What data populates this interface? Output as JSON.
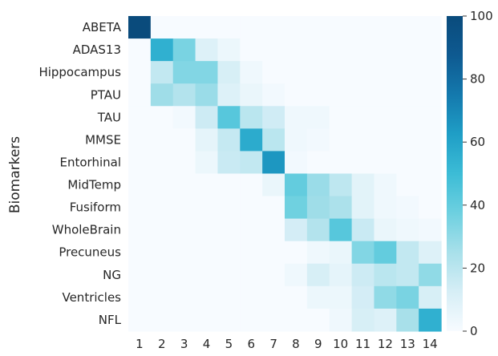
{
  "chart_data": {
    "type": "heatmap",
    "ylabel": "Biomarkers",
    "xlabel": "",
    "title": "",
    "rows": [
      "ABETA",
      "ADAS13",
      "Hippocampus",
      "PTAU",
      "TAU",
      "MMSE",
      "Entorhinal",
      "MidTemp",
      "Fusiform",
      "WholeBrain",
      "Precuneus",
      "NG",
      "Ventricles",
      "NFL"
    ],
    "columns": [
      "1",
      "2",
      "3",
      "4",
      "5",
      "6",
      "7",
      "8",
      "9",
      "10",
      "11",
      "12",
      "13",
      "14"
    ],
    "values": [
      [
        100,
        0,
        0,
        0,
        0,
        0,
        0,
        0,
        0,
        0,
        0,
        0,
        0,
        0
      ],
      [
        0,
        55,
        35,
        10,
        4,
        0,
        0,
        0,
        0,
        0,
        0,
        0,
        0,
        0
      ],
      [
        0,
        18,
        33,
        33,
        12,
        3,
        0,
        0,
        0,
        0,
        0,
        0,
        0,
        0
      ],
      [
        0,
        27,
        22,
        28,
        10,
        5,
        2,
        0,
        0,
        0,
        0,
        0,
        0,
        0
      ],
      [
        0,
        0,
        2,
        15,
        43,
        20,
        14,
        3,
        3,
        0,
        0,
        0,
        0,
        0
      ],
      [
        0,
        0,
        0,
        7,
        17,
        57,
        20,
        3,
        2,
        0,
        0,
        0,
        0,
        0
      ],
      [
        0,
        0,
        0,
        4,
        16,
        18,
        65,
        2,
        0,
        0,
        0,
        0,
        0,
        0
      ],
      [
        0,
        0,
        0,
        0,
        0,
        0,
        5,
        40,
        28,
        19,
        8,
        3,
        0,
        0
      ],
      [
        0,
        0,
        0,
        0,
        0,
        0,
        0,
        37,
        27,
        24,
        8,
        3,
        2,
        0
      ],
      [
        0,
        0,
        0,
        0,
        0,
        0,
        0,
        13,
        22,
        43,
        16,
        5,
        3,
        2
      ],
      [
        0,
        0,
        0,
        0,
        0,
        0,
        0,
        0,
        3,
        5,
        33,
        40,
        18,
        10
      ],
      [
        0,
        0,
        0,
        0,
        0,
        0,
        0,
        3,
        12,
        7,
        15,
        20,
        18,
        30
      ],
      [
        0,
        0,
        0,
        0,
        0,
        0,
        0,
        0,
        4,
        4,
        13,
        30,
        35,
        12
      ],
      [
        0,
        0,
        0,
        0,
        0,
        0,
        0,
        0,
        0,
        3,
        12,
        10,
        25,
        55
      ]
    ],
    "colorbar": {
      "min": 0,
      "max": 100,
      "ticks": [
        0,
        20,
        40,
        60,
        80,
        100
      ]
    },
    "colormap": [
      "#f7fbff",
      "#d6eef6",
      "#a8e0ea",
      "#6dd0e0",
      "#3cbcd6",
      "#1f9ec6",
      "#1479ad",
      "#0e5a91",
      "#0a4b7c"
    ]
  }
}
